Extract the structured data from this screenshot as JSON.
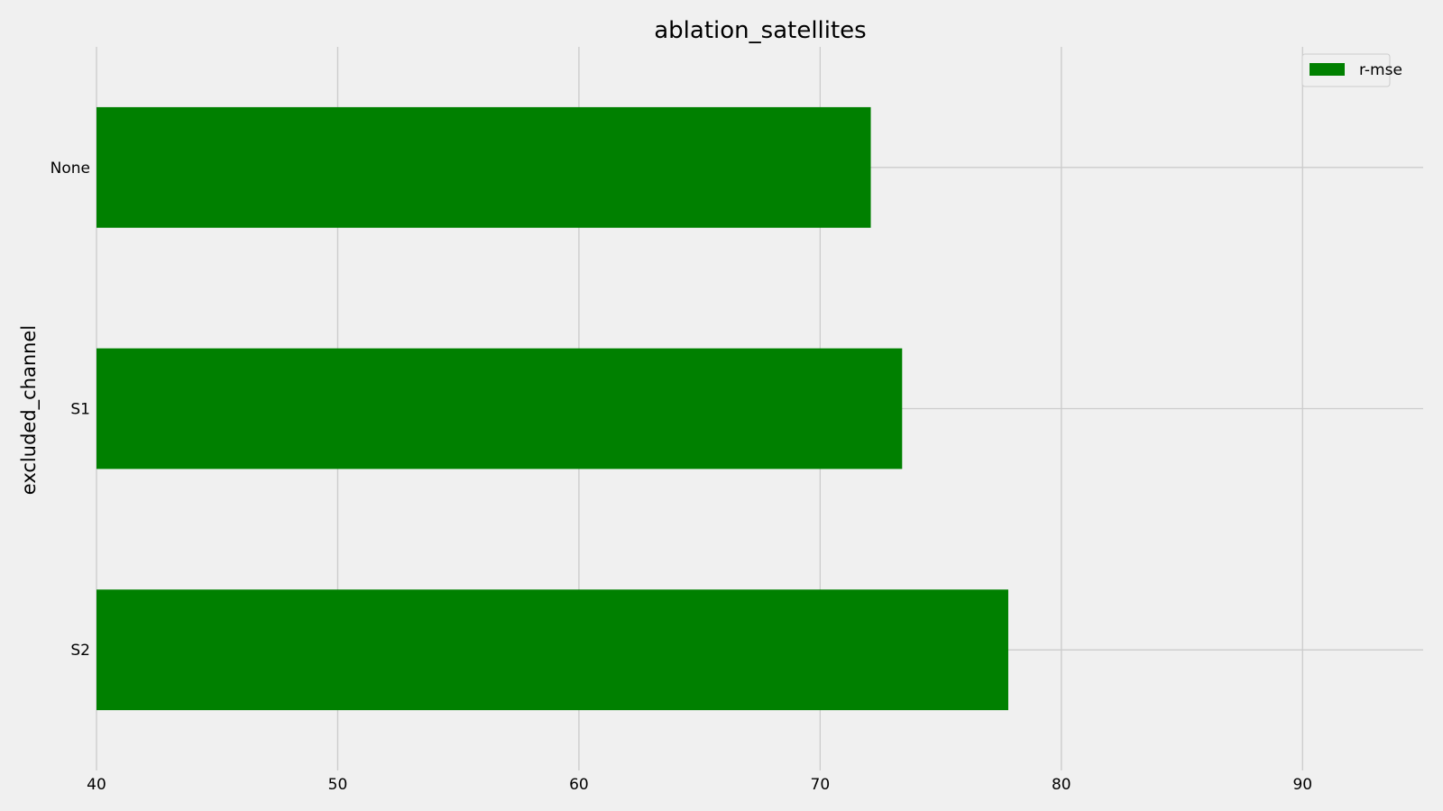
{
  "chart_data": {
    "type": "bar",
    "orientation": "horizontal",
    "title": "ablation_satellites",
    "xlabel": "",
    "ylabel": "excluded_channel",
    "categories": [
      "None",
      "S1",
      "S2"
    ],
    "series": [
      {
        "name": "r-mse",
        "values": [
          72.1,
          73.4,
          77.8
        ]
      }
    ],
    "xlim": [
      40,
      95
    ],
    "xticks": [
      40,
      50,
      60,
      70,
      80,
      90
    ],
    "grid": true,
    "legend_position": "top-right",
    "colors": {
      "bar": "#008000",
      "background": "#f0f0f0",
      "grid": "#cbcbcb"
    }
  }
}
